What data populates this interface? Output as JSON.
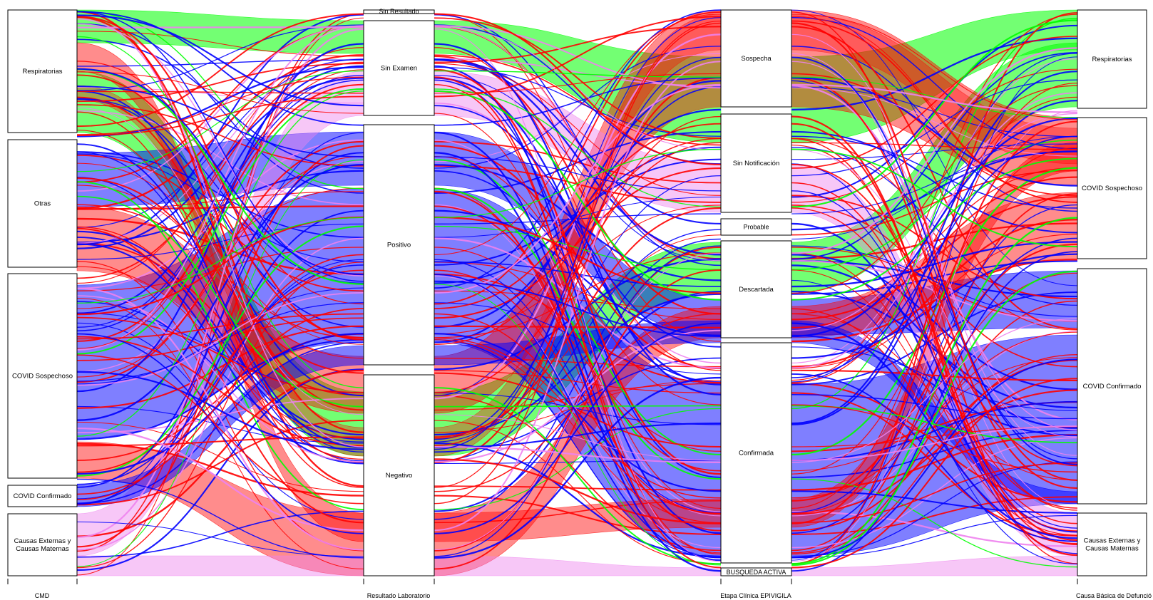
{
  "axes": [
    "CMD",
    "Resultado Laboratorio",
    "Etapa Clínica EPIVIGILA",
    "Causa Básica de Defunción"
  ],
  "axis_display": {
    "cmd": "CMD",
    "lab": "Resultado Laboratorio",
    "etapa": "Etapa Clínica EPIVIGILA",
    "causa": "Causa Básica de Defunció"
  },
  "colors": {
    "respiratorias": "#00ff00",
    "covid_sospechoso": "#ff0000",
    "covid_confirmado": "#0000ff",
    "otras": "#0000cc",
    "causas_externas": "#ee82ee"
  },
  "chart_data": {
    "type": "alluvial",
    "axes": [
      "CMD",
      "Resultado Laboratorio",
      "Etapa Clínica EPIVIGILA",
      "Causa Básica de Defunción"
    ],
    "categories": {
      "cmd": [
        "Respiratorias",
        "Otras",
        "COVID Sospechoso",
        "COVID Confirmado",
        "Causas Externas y Causas Maternas"
      ],
      "lab": [
        "Sin Resultado",
        "Sin Examen",
        "Positivo",
        "Negativo"
      ],
      "etapa": [
        "Sospecha",
        "Sin Notificación",
        "Probable",
        "Descartada",
        "Confirmada",
        "BUSQUEDA ACTIVA"
      ],
      "causa": [
        "Respiratorias",
        "COVID Sospechoso",
        "COVID Confirmado",
        "Causas Externas y Causas Maternas"
      ]
    },
    "flows": [
      {
        "path": [
          "Respiratorias",
          "Sin Examen",
          "Sospecha",
          "Respiratorias"
        ],
        "color": "green",
        "thickness": "large"
      },
      {
        "path": [
          "Respiratorias",
          "Negativo",
          "Descartada",
          "Respiratorias"
        ],
        "color": "green",
        "thickness": "large"
      },
      {
        "path": [
          "Otras",
          "Positivo",
          "Confirmada",
          "COVID Confirmado"
        ],
        "color": "blue",
        "thickness": "medium"
      },
      {
        "path": [
          "COVID Sospechoso",
          "Positivo",
          "Confirmada",
          "COVID Confirmado"
        ],
        "color": "blue",
        "thickness": "very large"
      },
      {
        "path": [
          "COVID Sospechoso",
          "Negativo",
          "Sospecha",
          "COVID Sospechoso"
        ],
        "color": "red",
        "thickness": "large"
      },
      {
        "path": [
          "COVID Sospechoso",
          "Negativo",
          "Descartada",
          "COVID Sospechoso"
        ],
        "color": "red",
        "thickness": "medium"
      },
      {
        "path": [
          "COVID Confirmado",
          "Positivo",
          "Confirmada",
          "COVID Confirmado"
        ],
        "color": "blue",
        "thickness": "small"
      },
      {
        "path": [
          "Causas Externas y Causas Maternas",
          "Sin Examen",
          "Sin Notificación",
          "Causas Externas y Causas Maternas"
        ],
        "color": "violet",
        "thickness": "medium"
      },
      {
        "path": [
          "Causas Externas y Causas Maternas",
          "Negativo",
          "BUSQUEDA ACTIVA",
          "Causas Externas y Causas Maternas"
        ],
        "color": "violet",
        "thickness": "small"
      }
    ]
  }
}
